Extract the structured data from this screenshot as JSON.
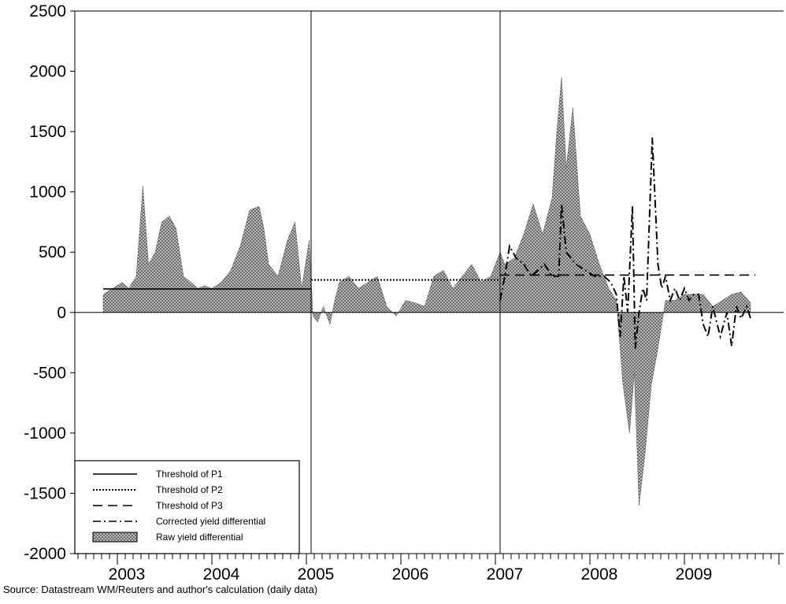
{
  "chart_data": {
    "type": "line",
    "title": "",
    "xlabel": "",
    "ylabel": "",
    "ylim": [
      -2000,
      2500
    ],
    "yticks": [
      -2000,
      -1500,
      -1000,
      -500,
      0,
      500,
      1000,
      1500,
      2000,
      2500
    ],
    "ytick_labels": [
      "-2000",
      "-1500",
      "-1000",
      "-500",
      "0",
      "500",
      "1000",
      "1500",
      "2000",
      "2500"
    ],
    "xlim": [
      2002.55,
      2010.05
    ],
    "xtick_labels": [
      "2003",
      "2004",
      "2005",
      "2006",
      "2007",
      "2008",
      "2009"
    ],
    "xtick_label_positions": [
      2003.1,
      2004.1,
      2005.1,
      2006.1,
      2007.1,
      2008.1,
      2009.1
    ],
    "period_breaks": [
      2005.05,
      2007.05
    ],
    "grid": false,
    "legend_position": "bottom-left",
    "series": [
      {
        "name": "Raw yield differential",
        "style": "hatched-area",
        "x": [
          2002.85,
          2002.95,
          2003.05,
          2003.12,
          2003.2,
          2003.27,
          2003.33,
          2003.4,
          2003.47,
          2003.55,
          2003.62,
          2003.7,
          2003.78,
          2003.85,
          2003.92,
          2004.0,
          2004.1,
          2004.2,
          2004.3,
          2004.4,
          2004.5,
          2004.55,
          2004.6,
          2004.7,
          2004.8,
          2004.88,
          2004.95,
          2005.03,
          2005.07,
          2005.12,
          2005.18,
          2005.25,
          2005.3,
          2005.35,
          2005.45,
          2005.55,
          2005.65,
          2005.75,
          2005.85,
          2005.95,
          2006.05,
          2006.15,
          2006.25,
          2006.35,
          2006.45,
          2006.55,
          2006.65,
          2006.75,
          2006.85,
          2006.95,
          2007.05,
          2007.1,
          2007.2,
          2007.3,
          2007.4,
          2007.5,
          2007.6,
          2007.65,
          2007.7,
          2007.75,
          2007.82,
          2007.9,
          2008.0,
          2008.1,
          2008.2,
          2008.28,
          2008.35,
          2008.42,
          2008.47,
          2008.52,
          2008.58,
          2008.65,
          2008.72,
          2008.8,
          2008.9,
          2009.0,
          2009.1,
          2009.2,
          2009.3,
          2009.4,
          2009.5,
          2009.6,
          2009.7
        ],
        "values": [
          150,
          200,
          250,
          200,
          300,
          1050,
          400,
          500,
          750,
          800,
          700,
          300,
          250,
          200,
          220,
          200,
          250,
          350,
          550,
          850,
          880,
          700,
          400,
          300,
          600,
          750,
          200,
          600,
          -30,
          -80,
          50,
          -100,
          100,
          250,
          300,
          200,
          250,
          300,
          50,
          -30,
          100,
          80,
          50,
          300,
          350,
          200,
          300,
          400,
          250,
          300,
          500,
          400,
          450,
          650,
          900,
          650,
          950,
          1500,
          1950,
          1200,
          1700,
          800,
          650,
          400,
          200,
          100,
          -600,
          -1000,
          -500,
          -1600,
          -1200,
          -600,
          -300,
          100,
          100,
          150,
          150,
          150,
          50,
          100,
          150,
          170,
          80
        ]
      },
      {
        "name": "Corrected yield differential",
        "style": "dash-dot",
        "x": [
          2007.05,
          2007.1,
          2007.15,
          2007.22,
          2007.3,
          2007.38,
          2007.45,
          2007.52,
          2007.6,
          2007.67,
          2007.7,
          2007.75,
          2007.85,
          2007.95,
          2008.05,
          2008.15,
          2008.22,
          2008.28,
          2008.32,
          2008.36,
          2008.4,
          2008.45,
          2008.48,
          2008.52,
          2008.56,
          2008.6,
          2008.66,
          2008.72,
          2008.76,
          2008.8,
          2008.85,
          2008.9,
          2008.95,
          2009.0,
          2009.05,
          2009.1,
          2009.15,
          2009.2,
          2009.25,
          2009.3,
          2009.38,
          2009.45,
          2009.5,
          2009.55,
          2009.6,
          2009.66,
          2009.7
        ],
        "values": [
          100,
          300,
          550,
          450,
          400,
          300,
          350,
          400,
          300,
          300,
          900,
          500,
          400,
          350,
          300,
          300,
          250,
          150,
          -200,
          300,
          0,
          880,
          -300,
          0,
          200,
          100,
          1450,
          400,
          200,
          300,
          100,
          200,
          100,
          200,
          100,
          150,
          150,
          -100,
          -200,
          50,
          -200,
          0,
          -280,
          50,
          -50,
          50,
          -50
        ]
      }
    ],
    "thresholds": [
      {
        "name": "Threshold of P1",
        "style": "solid",
        "x_start": 2002.85,
        "x_end": 2005.05,
        "value": 195
      },
      {
        "name": "Threshold of P2",
        "style": "dotted",
        "x_start": 2005.05,
        "x_end": 2007.05,
        "value": 270
      },
      {
        "name": "Threshold of P3",
        "style": "dashed",
        "x_start": 2007.05,
        "x_end": 2009.75,
        "value": 310
      }
    ],
    "legend": [
      {
        "label": "Threshold of P1",
        "style": "solid"
      },
      {
        "label": "Threshold of P2",
        "style": "dotted"
      },
      {
        "label": "Threshold of P3",
        "style": "dashed"
      },
      {
        "label": "Corrected yield differential",
        "style": "dash-dot"
      },
      {
        "label": "Raw yield differential",
        "style": "hatched-area"
      }
    ]
  },
  "source_note": "Source: Datastream WM/Reuters and author's calculation (daily data)"
}
